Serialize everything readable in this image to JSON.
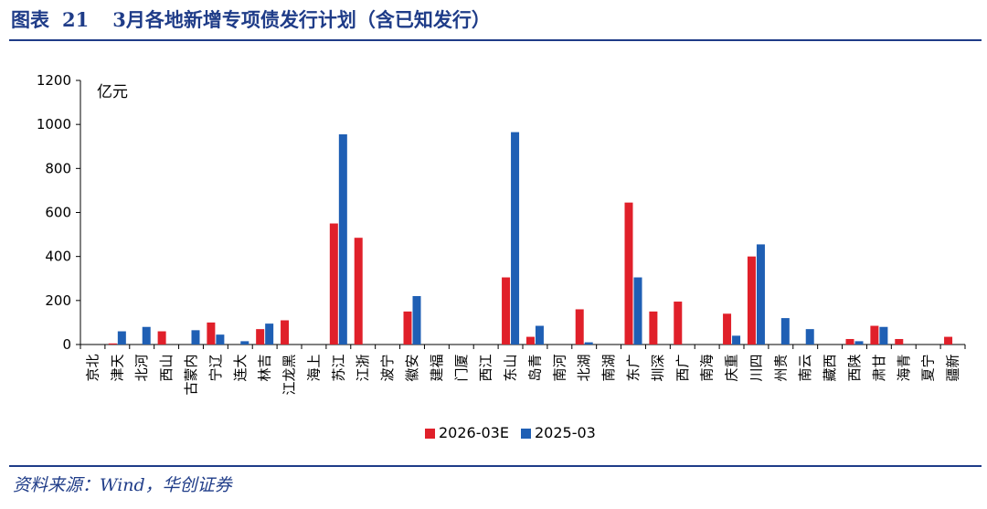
{
  "figure": {
    "label": "图表",
    "number": "21",
    "title": "3月各地新增专项债发行计划（含已知发行）",
    "source": "资料来源：Wind，华创证券"
  },
  "colors": {
    "series_2026": "#e0202a",
    "series_2025": "#1f5fb4",
    "axis": "#000000",
    "title": "#1f3c88"
  },
  "chart_data": {
    "type": "bar",
    "title": "3月各地新增专项债发行计划（含已知发行）",
    "ylabel": "亿元",
    "xlabel": "",
    "ylim": [
      0,
      1200
    ],
    "yticks": [
      0,
      200,
      400,
      600,
      800,
      1000,
      1200
    ],
    "grid": false,
    "legend_position": "bottom-center",
    "categories": [
      "北京",
      "天津",
      "河北",
      "山西",
      "内蒙古",
      "辽宁",
      "大连",
      "吉林",
      "黑龙江",
      "上海",
      "江苏",
      "浙江",
      "宁波",
      "安徽",
      "福建",
      "厦门",
      "江西",
      "山东",
      "青岛",
      "河南",
      "湖北",
      "湖南",
      "广东",
      "深圳",
      "广西",
      "海南",
      "重庆",
      "四川",
      "贵州",
      "云南",
      "西藏",
      "陕西",
      "甘肃",
      "青海",
      "宁夏",
      "新疆"
    ],
    "series": [
      {
        "name": "2026-03E",
        "color": "#e0202a",
        "values": [
          0,
          5,
          0,
          60,
          0,
          100,
          0,
          70,
          110,
          0,
          550,
          485,
          0,
          150,
          0,
          0,
          0,
          305,
          35,
          0,
          160,
          0,
          645,
          150,
          195,
          0,
          140,
          400,
          0,
          0,
          0,
          25,
          85,
          25,
          0,
          35
        ]
      },
      {
        "name": "2025-03",
        "color": "#1f5fb4",
        "values": [
          0,
          60,
          80,
          0,
          65,
          45,
          15,
          95,
          0,
          0,
          955,
          0,
          0,
          220,
          0,
          0,
          0,
          965,
          85,
          0,
          10,
          0,
          305,
          0,
          0,
          0,
          40,
          455,
          120,
          70,
          0,
          15,
          80,
          0,
          0,
          0
        ]
      }
    ]
  }
}
